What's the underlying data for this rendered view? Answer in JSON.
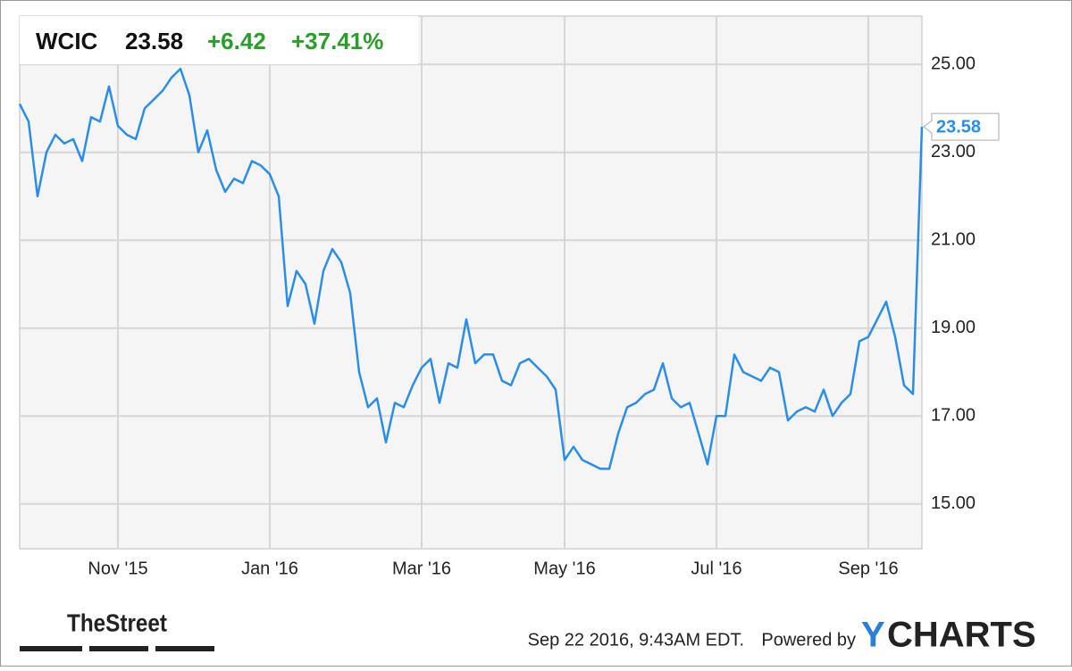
{
  "chart_data": {
    "type": "line",
    "header": {
      "ticker": "WCIC",
      "change": "+6.42",
      "change_percent": "+37.41%"
    },
    "categories": [
      null,
      null,
      null,
      null,
      null,
      null,
      null,
      null,
      null,
      null,
      null,
      "Nov '15",
      null,
      null,
      null,
      null,
      null,
      null,
      null,
      null,
      null,
      null,
      null,
      null,
      null,
      null,
      null,
      null,
      "Jan '16",
      null,
      null,
      null,
      null,
      null,
      null,
      null,
      null,
      null,
      null,
      null,
      null,
      null,
      null,
      null,
      null,
      "Mar '16",
      null,
      null,
      null,
      null,
      null,
      null,
      null,
      null,
      null,
      null,
      null,
      null,
      null,
      null,
      null,
      "May '16",
      null,
      null,
      null,
      null,
      null,
      null,
      null,
      null,
      null,
      null,
      null,
      null,
      null,
      null,
      null,
      null,
      "Jul '16",
      null,
      null,
      null,
      null,
      null,
      null,
      null,
      null,
      null,
      null,
      null,
      null,
      null,
      null,
      null,
      null,
      "Sep '16",
      null,
      null,
      null,
      null,
      null,
      null
    ],
    "values": [
      24.1,
      23.7,
      22.0,
      23.0,
      23.4,
      23.2,
      23.3,
      22.8,
      23.8,
      23.7,
      24.5,
      23.6,
      23.4,
      23.3,
      24.0,
      24.2,
      24.4,
      24.7,
      24.9,
      24.3,
      23.0,
      23.5,
      22.6,
      22.1,
      22.4,
      22.3,
      22.8,
      22.7,
      22.5,
      22.0,
      19.5,
      20.3,
      20.0,
      19.1,
      20.3,
      20.8,
      20.5,
      19.8,
      18.0,
      17.2,
      17.4,
      16.4,
      17.3,
      17.2,
      17.7,
      18.1,
      18.3,
      17.3,
      18.2,
      18.1,
      19.2,
      18.2,
      18.4,
      18.4,
      17.8,
      17.7,
      18.2,
      18.3,
      18.1,
      17.9,
      17.6,
      16.0,
      16.3,
      16.0,
      15.9,
      15.8,
      15.8,
      16.6,
      17.2,
      17.3,
      17.5,
      17.6,
      18.2,
      17.4,
      17.2,
      17.3,
      16.6,
      15.9,
      17.0,
      17.0,
      18.4,
      18.0,
      17.9,
      17.8,
      18.1,
      18.0,
      16.9,
      17.1,
      17.2,
      17.1,
      17.6,
      17.0,
      17.3,
      17.5,
      18.7,
      18.8,
      19.2,
      19.6,
      18.8,
      17.7,
      17.5,
      23.58
    ],
    "color": "#2b8ee6",
    "ylim": [
      13.98,
      26.1
    ],
    "yticks": [
      {
        "value": 15,
        "label": "15.00"
      },
      {
        "value": 17,
        "label": "17.00"
      },
      {
        "value": 19,
        "label": "19.00"
      },
      {
        "value": 21,
        "label": "21.00"
      },
      {
        "value": 23,
        "label": "23.00"
      },
      {
        "value": 25,
        "label": "25.00"
      }
    ],
    "grid": true,
    "footer": {
      "source_logo": "TheStreet",
      "timestamp": "Sep 22 2016, 9:43AM EDT.",
      "powered_by": "Powered by",
      "brand_first": "Y",
      "brand_rest": "CHARTS"
    }
  }
}
